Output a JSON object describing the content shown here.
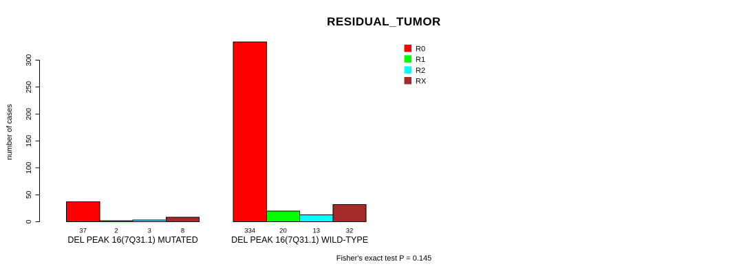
{
  "chart_data": {
    "type": "bar",
    "title": "RESIDUAL_TUMOR",
    "ylabel": "number of cases",
    "xlabel": "",
    "ylim": [
      0,
      300
    ],
    "yticks": [
      0,
      50,
      100,
      150,
      200,
      250,
      300
    ],
    "grid": false,
    "legend_position": "upper-right-of-plot",
    "bar_border_color": "#000000",
    "categories": [
      "DEL PEAK 16(7Q31.1) MUTATED",
      "DEL PEAK 16(7Q31.1) WILD-TYPE"
    ],
    "category_keys": [
      "mutated",
      "wild-type"
    ],
    "series": [
      {
        "name": "R0",
        "color": "#FF0000",
        "values": [
          37,
          334
        ]
      },
      {
        "name": "R1",
        "color": "#00FF00",
        "values": [
          2,
          20
        ]
      },
      {
        "name": "R2",
        "color": "#00FFFF",
        "values": [
          3,
          13
        ]
      },
      {
        "name": "RX",
        "color": "#A52A2A",
        "values": [
          8,
          32
        ]
      }
    ],
    "annotation": "Fisher's exact test P = 0.145"
  }
}
